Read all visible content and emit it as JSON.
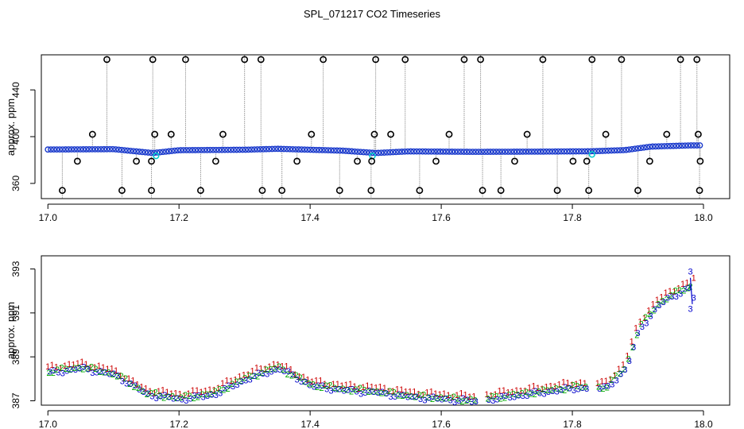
{
  "title": "SPL_071217  CO2 Timeseries",
  "chart_data": [
    {
      "type": "scatter",
      "ylabel": "approx. ppm",
      "xlim": [
        16.99,
        18.04
      ],
      "ylim": [
        347,
        470
      ],
      "xticks": [
        "17.0",
        "17.2",
        "17.4",
        "17.6",
        "17.8",
        "18.0"
      ],
      "yticks": [
        "360",
        "400",
        "440"
      ],
      "baseline_band": [
        [
          17.0,
          389
        ],
        [
          17.1,
          389.3
        ],
        [
          17.16,
          386
        ],
        [
          17.2,
          388.4
        ],
        [
          17.3,
          388.8
        ],
        [
          17.35,
          389.6
        ],
        [
          17.45,
          388
        ],
        [
          17.5,
          386
        ],
        [
          17.55,
          387.4
        ],
        [
          17.65,
          387
        ],
        [
          17.75,
          387.2
        ],
        [
          17.83,
          387.5
        ],
        [
          17.88,
          388.5
        ],
        [
          17.92,
          391.5
        ],
        [
          17.98,
          392.5
        ]
      ],
      "outliers_high": [
        17.09,
        17.16,
        17.21,
        17.3,
        17.325,
        17.42,
        17.5,
        17.545,
        17.635,
        17.66,
        17.755,
        17.83,
        17.875,
        17.965,
        17.99
      ],
      "outliers_low": [
        17.022,
        17.113,
        17.158,
        17.233,
        17.327,
        17.357,
        17.445,
        17.493,
        17.567,
        17.663,
        17.691,
        17.777,
        17.825,
        17.9,
        17.994
      ],
      "outliers_mid_high": [
        17.068,
        17.163,
        17.188,
        17.267,
        17.402,
        17.498,
        17.523,
        17.612,
        17.731,
        17.851,
        17.944,
        17.992
      ],
      "outliers_mid_low": [
        17.045,
        17.135,
        17.158,
        17.256,
        17.38,
        17.472,
        17.494,
        17.592,
        17.712,
        17.801,
        17.822,
        17.918,
        17.995
      ],
      "outlier_values": {
        "high": 466,
        "mid_high": 402,
        "mid_low": 379,
        "low": 354
      }
    },
    {
      "type": "scatter",
      "ylabel": "approx. ppm",
      "xlim": [
        16.99,
        18.04
      ],
      "ylim": [
        386.8,
        393.6
      ],
      "xticks": [
        "17.0",
        "17.2",
        "17.4",
        "17.6",
        "17.8",
        "18.0"
      ],
      "yticks": [
        "387",
        "389",
        "391",
        "393"
      ],
      "series": [
        {
          "name": "1",
          "color": "#cc0000",
          "offset": 0.12
        },
        {
          "name": "2",
          "color": "#00aa00",
          "offset": -0.06
        },
        {
          "name": "3",
          "color": "#0000cc",
          "offset": -0.12
        }
      ],
      "x": [
        17.0,
        17.05,
        17.1,
        17.15,
        17.2,
        17.25,
        17.3,
        17.33,
        17.35,
        17.4,
        17.45,
        17.5,
        17.55,
        17.6,
        17.65,
        17.7,
        17.75,
        17.8,
        17.85,
        17.88,
        17.9,
        17.93,
        17.95,
        17.98
      ],
      "values": [
        388.4,
        388.6,
        388.3,
        387.4,
        387.2,
        387.4,
        388.1,
        388.4,
        388.6,
        387.8,
        387.6,
        387.5,
        387.3,
        387.2,
        387.1,
        387.3,
        387.5,
        387.7,
        387.7,
        388.6,
        390.4,
        391.5,
        391.9,
        392.3
      ]
    }
  ]
}
